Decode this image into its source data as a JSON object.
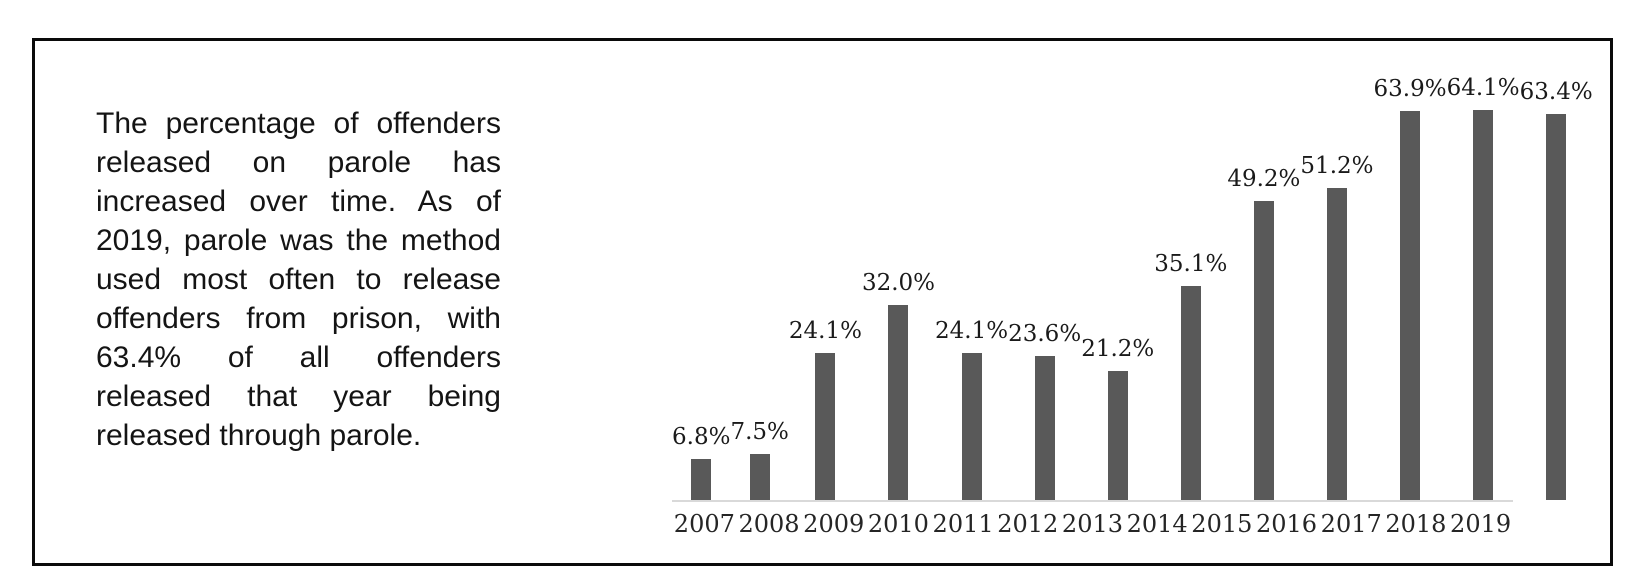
{
  "description": {
    "text": "The percentage of offenders released on parole has increased over time. As of 2019, parole was the method used most often to release offenders from prison, with 63.4% of all offenders released that year being released through parole."
  },
  "chart_data": {
    "type": "bar",
    "categories": [
      "2007",
      "2008",
      "2009",
      "2010",
      "2011",
      "2012",
      "2013",
      "2014",
      "2015",
      "2016",
      "2017",
      "2018",
      "2019"
    ],
    "values": [
      6.8,
      7.5,
      24.1,
      32.0,
      24.1,
      23.6,
      21.2,
      35.1,
      49.2,
      51.2,
      63.9,
      64.1,
      63.4
    ],
    "value_labels": [
      "6.8%",
      "7.5%",
      "24.1%",
      "32.0%",
      "24.1%",
      "23.6%",
      "21.2%",
      "35.1%",
      "49.2%",
      "51.2%",
      "63.9%",
      "64.1%",
      "63.4%"
    ],
    "title": "",
    "xlabel": "",
    "ylabel": "",
    "ylim": [
      0,
      70
    ],
    "grid": false,
    "legend": null,
    "data_labels_position": "above-bars",
    "colors": {
      "bar": "#595959",
      "axis_line": "#d9d9d9",
      "label_text": "#1a1a1a",
      "frame_border": "#0a0a0a",
      "background": "#ffffff"
    }
  }
}
